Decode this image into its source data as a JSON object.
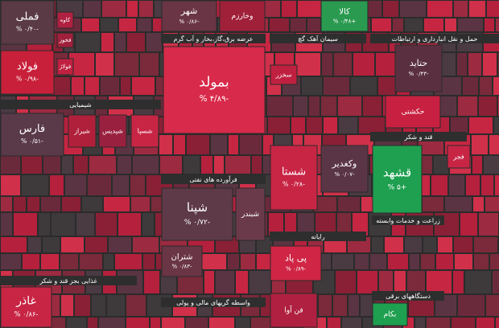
{
  "sectors": [
    {
      "label": "عرضه برق،گاز،بخار و آب گرم"
    },
    {
      "label": "سیمان آهک گچ"
    },
    {
      "label": "حمل و نقل انبارداری و ارتباطات"
    },
    {
      "label": "شیمیایی"
    },
    {
      "label": "قند و شکر"
    },
    {
      "label": "فرآورده های نفتی"
    },
    {
      "label": "زراعت و خدمات وابسته"
    },
    {
      "label": "رایانه"
    },
    {
      "label": "غذایی بجز قند و شکر"
    },
    {
      "label": "واسطه گریهای مالی و پولی"
    },
    {
      "label": "دستگاههای برقی"
    }
  ],
  "tiles": [
    {
      "name": "فملی",
      "change": "-۰/۴۰ %"
    },
    {
      "name": "فولاد",
      "change": "-۰/۹۸ %"
    },
    {
      "name": "کاوه"
    },
    {
      "name": "فخوز"
    },
    {
      "name": "فولاژ"
    },
    {
      "name": "شهر",
      "change": "-۰/۸۶ %"
    },
    {
      "name": "وخارزم"
    },
    {
      "name": "بمولد",
      "change": "-۴/۸۹ %"
    },
    {
      "name": "حتاید",
      "change": "-۰/۴۳ %"
    },
    {
      "name": "حکشتی"
    },
    {
      "name": "کالا",
      "change": "+۰/۴۸ %"
    },
    {
      "name": "فارس",
      "change": "-۰/۵۱ %"
    },
    {
      "name": "شیراز"
    },
    {
      "name": "شپدیس"
    },
    {
      "name": "شسپا"
    },
    {
      "name": "شستا",
      "change": "-۰/۲۸ %"
    },
    {
      "name": "وکغدیر",
      "change": "-۰/۰۷ %"
    },
    {
      "name": "قشهد",
      "change": "+۵ %"
    },
    {
      "name": "شپنا",
      "change": "-۰/۷۲ %"
    },
    {
      "name": "شبندر"
    },
    {
      "name": "پی پاد",
      "change": "-۰/۸۹ %"
    },
    {
      "name": "شتران",
      "change": "-۰/۸۳ %"
    },
    {
      "name": "غاذر",
      "change": "-۰/۸۶ %"
    },
    {
      "name": "بکام"
    },
    {
      "name": "فن آوا"
    },
    {
      "name": "سخزر"
    },
    {
      "name": "فجر"
    }
  ]
}
